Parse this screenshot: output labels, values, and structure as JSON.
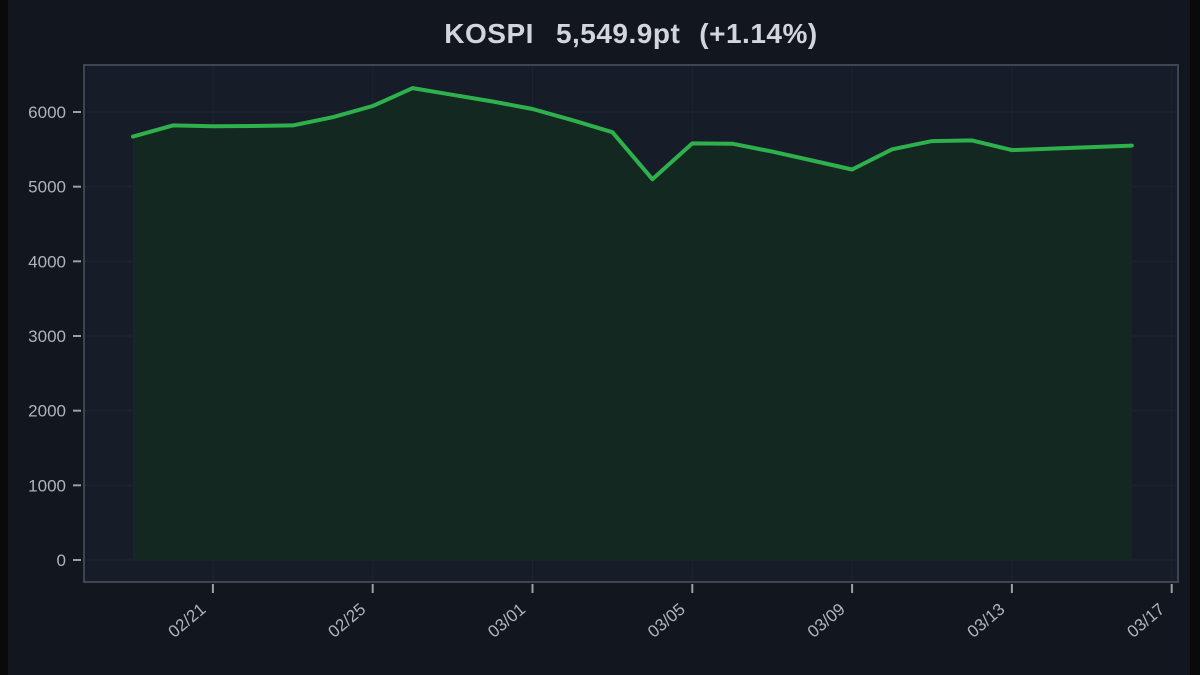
{
  "title": {
    "index_name": "KOSPI",
    "value": "5,549.9pt",
    "change": "(+1.14%)"
  },
  "chart_data": {
    "type": "area",
    "title": "KOSPI 5,549.9pt (+1.14%)",
    "series_name": "KOSPI",
    "x": [
      "02/19",
      "02/20",
      "02/21",
      "02/22",
      "02/23",
      "02/24",
      "02/25",
      "02/26",
      "02/27",
      "02/28",
      "03/01",
      "03/02",
      "03/03",
      "03/04",
      "03/05",
      "03/06",
      "03/07",
      "03/08",
      "03/09",
      "03/10",
      "03/11",
      "03/12",
      "03/13",
      "03/14",
      "03/15",
      "03/16"
    ],
    "values": [
      5670,
      5820,
      5810,
      5812,
      5820,
      5930,
      6080,
      6320,
      6230,
      6140,
      6040,
      5890,
      5730,
      5100,
      5580,
      5575,
      5470,
      5350,
      5230,
      5500,
      5610,
      5620,
      5490,
      5510,
      5530,
      5549.9
    ],
    "x_axis_end": "03/17",
    "x_tick_labels": [
      "02/21",
      "02/25",
      "03/01",
      "03/05",
      "03/09",
      "03/13",
      "03/17"
    ],
    "y_tick_labels": [
      "0",
      "1000",
      "2000",
      "3000",
      "4000",
      "5000",
      "6000"
    ],
    "ylim": [
      -300,
      6650
    ],
    "grid": "faint",
    "legend": false,
    "colors": {
      "background": "#12161e",
      "panel": "#161d28",
      "panel_border": "#3e4552",
      "grid": "#1d2430",
      "line": "#2eb04c",
      "area_fill": "#142822",
      "tick": "#98a0aa",
      "axis_label": "#aeb4bf",
      "title_text": "#d2d5da",
      "letterbox": "#0a0a0b"
    }
  }
}
